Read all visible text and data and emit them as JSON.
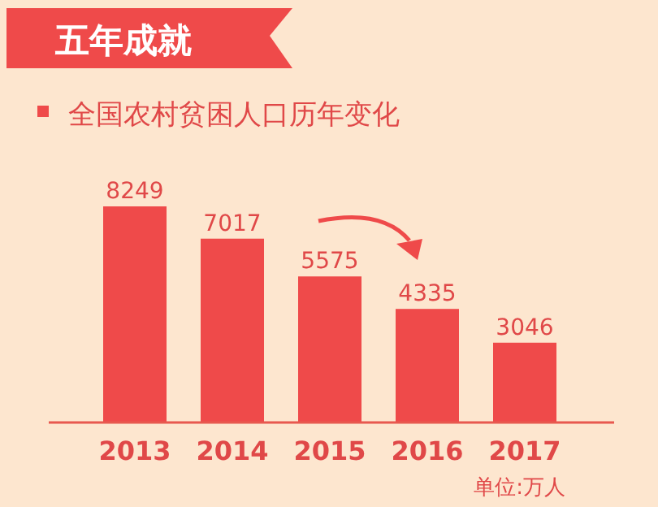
{
  "chart_data": {
    "type": "bar",
    "title": "五年成就",
    "subtitle": "全国农村贫困人口历年变化",
    "categories": [
      "2013",
      "2014",
      "2015",
      "2016",
      "2017"
    ],
    "values": [
      8249,
      7017,
      5575,
      4335,
      3046
    ],
    "color": "#ef4a4a",
    "data_labels": true,
    "tick_labels": "x",
    "annotations": [
      "单位:万人"
    ]
  }
}
